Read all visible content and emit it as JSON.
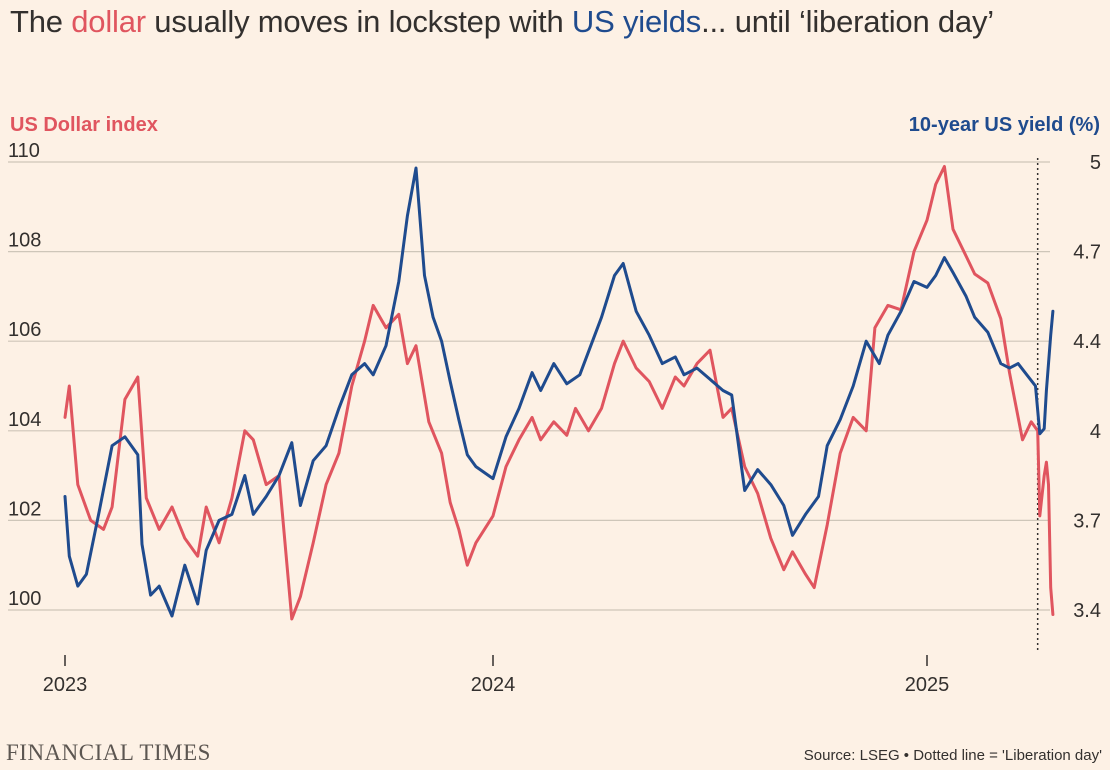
{
  "title": {
    "part1": "The ",
    "dollar": "dollar",
    "part2": " usually moves in lockstep with ",
    "yields": "US yields",
    "part3": "... until ‘liberation day’"
  },
  "colors": {
    "dollar": "#E0555F",
    "yield": "#1F4B8E",
    "grid": "#CEC6B9",
    "text": "#33302E",
    "background": "#FDF1E5"
  },
  "footer": {
    "brand": "FINANCIAL TIMES",
    "source": "Source: LSEG • Dotted line = 'Liberation day'"
  },
  "chart_data": {
    "type": "line",
    "dual_axis": true,
    "left_axis": {
      "label": "US Dollar index",
      "ticks": [
        100,
        102,
        104,
        106,
        108,
        110
      ],
      "tick_labels": [
        "100",
        "102",
        "104",
        "106",
        "108",
        "110"
      ],
      "range": [
        100,
        110
      ]
    },
    "right_axis": {
      "label": "10-year US yield (%)",
      "ticks": [
        3.4,
        3.7,
        4.0,
        4.4,
        4.7,
        5.0
      ],
      "tick_labels": [
        "3.4",
        "3.7",
        "4",
        "4.4",
        "4.7",
        "5"
      ],
      "range": [
        3.4,
        5.0
      ]
    },
    "x_axis": {
      "ticks": [
        2023,
        2024,
        2025
      ],
      "tick_labels": [
        "2023",
        "2024",
        "2025"
      ],
      "range": [
        2023.0,
        2025.3
      ]
    },
    "liberation_day": 2025.255,
    "series": [
      {
        "name": "US Dollar index",
        "axis": "left",
        "points": [
          [
            2023.0,
            104.3
          ],
          [
            2023.01,
            105.0
          ],
          [
            2023.03,
            102.8
          ],
          [
            2023.06,
            102.0
          ],
          [
            2023.09,
            101.8
          ],
          [
            2023.11,
            102.3
          ],
          [
            2023.14,
            104.7
          ],
          [
            2023.17,
            105.2
          ],
          [
            2023.19,
            102.5
          ],
          [
            2023.22,
            101.8
          ],
          [
            2023.25,
            102.3
          ],
          [
            2023.28,
            101.6
          ],
          [
            2023.31,
            101.2
          ],
          [
            2023.33,
            102.3
          ],
          [
            2023.36,
            101.5
          ],
          [
            2023.39,
            102.5
          ],
          [
            2023.42,
            104.0
          ],
          [
            2023.44,
            103.8
          ],
          [
            2023.47,
            102.8
          ],
          [
            2023.5,
            103.0
          ],
          [
            2023.53,
            99.8
          ],
          [
            2023.55,
            100.3
          ],
          [
            2023.58,
            101.5
          ],
          [
            2023.61,
            102.8
          ],
          [
            2023.64,
            103.5
          ],
          [
            2023.67,
            105.0
          ],
          [
            2023.7,
            106.0
          ],
          [
            2023.72,
            106.8
          ],
          [
            2023.75,
            106.3
          ],
          [
            2023.78,
            106.6
          ],
          [
            2023.8,
            105.5
          ],
          [
            2023.82,
            105.9
          ],
          [
            2023.85,
            104.2
          ],
          [
            2023.88,
            103.5
          ],
          [
            2023.9,
            102.4
          ],
          [
            2023.92,
            101.8
          ],
          [
            2023.94,
            101.0
          ],
          [
            2023.96,
            101.5
          ],
          [
            2024.0,
            102.1
          ],
          [
            2024.03,
            103.2
          ],
          [
            2024.06,
            103.8
          ],
          [
            2024.09,
            104.3
          ],
          [
            2024.11,
            103.8
          ],
          [
            2024.14,
            104.2
          ],
          [
            2024.17,
            103.9
          ],
          [
            2024.19,
            104.5
          ],
          [
            2024.22,
            104.0
          ],
          [
            2024.25,
            104.5
          ],
          [
            2024.28,
            105.5
          ],
          [
            2024.3,
            106.0
          ],
          [
            2024.33,
            105.4
          ],
          [
            2024.36,
            105.1
          ],
          [
            2024.39,
            104.5
          ],
          [
            2024.42,
            105.2
          ],
          [
            2024.44,
            105.0
          ],
          [
            2024.47,
            105.5
          ],
          [
            2024.5,
            105.8
          ],
          [
            2024.53,
            104.3
          ],
          [
            2024.55,
            104.5
          ],
          [
            2024.58,
            103.2
          ],
          [
            2024.61,
            102.6
          ],
          [
            2024.64,
            101.6
          ],
          [
            2024.67,
            100.9
          ],
          [
            2024.69,
            101.3
          ],
          [
            2024.72,
            100.8
          ],
          [
            2024.74,
            100.5
          ],
          [
            2024.77,
            101.9
          ],
          [
            2024.8,
            103.5
          ],
          [
            2024.83,
            104.3
          ],
          [
            2024.86,
            104.0
          ],
          [
            2024.88,
            106.3
          ],
          [
            2024.91,
            106.8
          ],
          [
            2024.94,
            106.7
          ],
          [
            2024.97,
            108.0
          ],
          [
            2025.0,
            108.7
          ],
          [
            2025.02,
            109.5
          ],
          [
            2025.04,
            109.9
          ],
          [
            2025.06,
            108.5
          ],
          [
            2025.09,
            107.9
          ],
          [
            2025.11,
            107.5
          ],
          [
            2025.14,
            107.3
          ],
          [
            2025.17,
            106.5
          ],
          [
            2025.19,
            105.3
          ],
          [
            2025.2,
            104.8
          ],
          [
            2025.22,
            103.8
          ],
          [
            2025.24,
            104.2
          ],
          [
            2025.255,
            104.0
          ],
          [
            2025.26,
            102.1
          ],
          [
            2025.27,
            103.0
          ],
          [
            2025.275,
            103.3
          ],
          [
            2025.28,
            102.8
          ],
          [
            2025.285,
            100.5
          ],
          [
            2025.29,
            99.9
          ]
        ]
      },
      {
        "name": "10-year US yield (%)",
        "axis": "right",
        "points": [
          [
            2023.0,
            3.78
          ],
          [
            2023.01,
            3.58
          ],
          [
            2023.03,
            3.48
          ],
          [
            2023.05,
            3.52
          ],
          [
            2023.08,
            3.73
          ],
          [
            2023.11,
            3.95
          ],
          [
            2023.14,
            3.98
          ],
          [
            2023.17,
            3.92
          ],
          [
            2023.18,
            3.62
          ],
          [
            2023.2,
            3.45
          ],
          [
            2023.22,
            3.48
          ],
          [
            2023.25,
            3.38
          ],
          [
            2023.28,
            3.55
          ],
          [
            2023.31,
            3.42
          ],
          [
            2023.33,
            3.6
          ],
          [
            2023.36,
            3.7
          ],
          [
            2023.39,
            3.72
          ],
          [
            2023.42,
            3.85
          ],
          [
            2023.44,
            3.72
          ],
          [
            2023.47,
            3.78
          ],
          [
            2023.5,
            3.85
          ],
          [
            2023.53,
            3.96
          ],
          [
            2023.55,
            3.75
          ],
          [
            2023.58,
            3.9
          ],
          [
            2023.61,
            3.95
          ],
          [
            2023.64,
            4.1
          ],
          [
            2023.67,
            4.25
          ],
          [
            2023.7,
            4.3
          ],
          [
            2023.72,
            4.25
          ],
          [
            2023.75,
            4.38
          ],
          [
            2023.78,
            4.6
          ],
          [
            2023.8,
            4.82
          ],
          [
            2023.82,
            4.98
          ],
          [
            2023.84,
            4.62
          ],
          [
            2023.86,
            4.48
          ],
          [
            2023.88,
            4.4
          ],
          [
            2023.9,
            4.22
          ],
          [
            2023.92,
            4.05
          ],
          [
            2023.94,
            3.92
          ],
          [
            2023.96,
            3.88
          ],
          [
            2024.0,
            3.84
          ],
          [
            2024.03,
            3.98
          ],
          [
            2024.06,
            4.1
          ],
          [
            2024.09,
            4.26
          ],
          [
            2024.11,
            4.18
          ],
          [
            2024.14,
            4.3
          ],
          [
            2024.17,
            4.21
          ],
          [
            2024.2,
            4.25
          ],
          [
            2024.25,
            4.48
          ],
          [
            2024.28,
            4.62
          ],
          [
            2024.3,
            4.66
          ],
          [
            2024.33,
            4.5
          ],
          [
            2024.36,
            4.42
          ],
          [
            2024.39,
            4.3
          ],
          [
            2024.42,
            4.33
          ],
          [
            2024.44,
            4.25
          ],
          [
            2024.47,
            4.28
          ],
          [
            2024.5,
            4.23
          ],
          [
            2024.53,
            4.18
          ],
          [
            2024.55,
            4.16
          ],
          [
            2024.58,
            3.8
          ],
          [
            2024.61,
            3.87
          ],
          [
            2024.64,
            3.82
          ],
          [
            2024.67,
            3.75
          ],
          [
            2024.69,
            3.65
          ],
          [
            2024.72,
            3.72
          ],
          [
            2024.75,
            3.78
          ],
          [
            2024.77,
            3.95
          ],
          [
            2024.8,
            4.05
          ],
          [
            2024.83,
            4.2
          ],
          [
            2024.86,
            4.4
          ],
          [
            2024.89,
            4.3
          ],
          [
            2024.91,
            4.42
          ],
          [
            2024.94,
            4.5
          ],
          [
            2024.97,
            4.6
          ],
          [
            2025.0,
            4.58
          ],
          [
            2025.02,
            4.62
          ],
          [
            2025.04,
            4.68
          ],
          [
            2025.06,
            4.63
          ],
          [
            2025.09,
            4.55
          ],
          [
            2025.11,
            4.48
          ],
          [
            2025.14,
            4.43
          ],
          [
            2025.17,
            4.3
          ],
          [
            2025.19,
            4.28
          ],
          [
            2025.21,
            4.3
          ],
          [
            2025.23,
            4.25
          ],
          [
            2025.25,
            4.2
          ],
          [
            2025.26,
            3.99
          ],
          [
            2025.27,
            4.01
          ],
          [
            2025.275,
            4.18
          ],
          [
            2025.28,
            4.3
          ],
          [
            2025.285,
            4.42
          ],
          [
            2025.29,
            4.5
          ]
        ]
      }
    ]
  }
}
